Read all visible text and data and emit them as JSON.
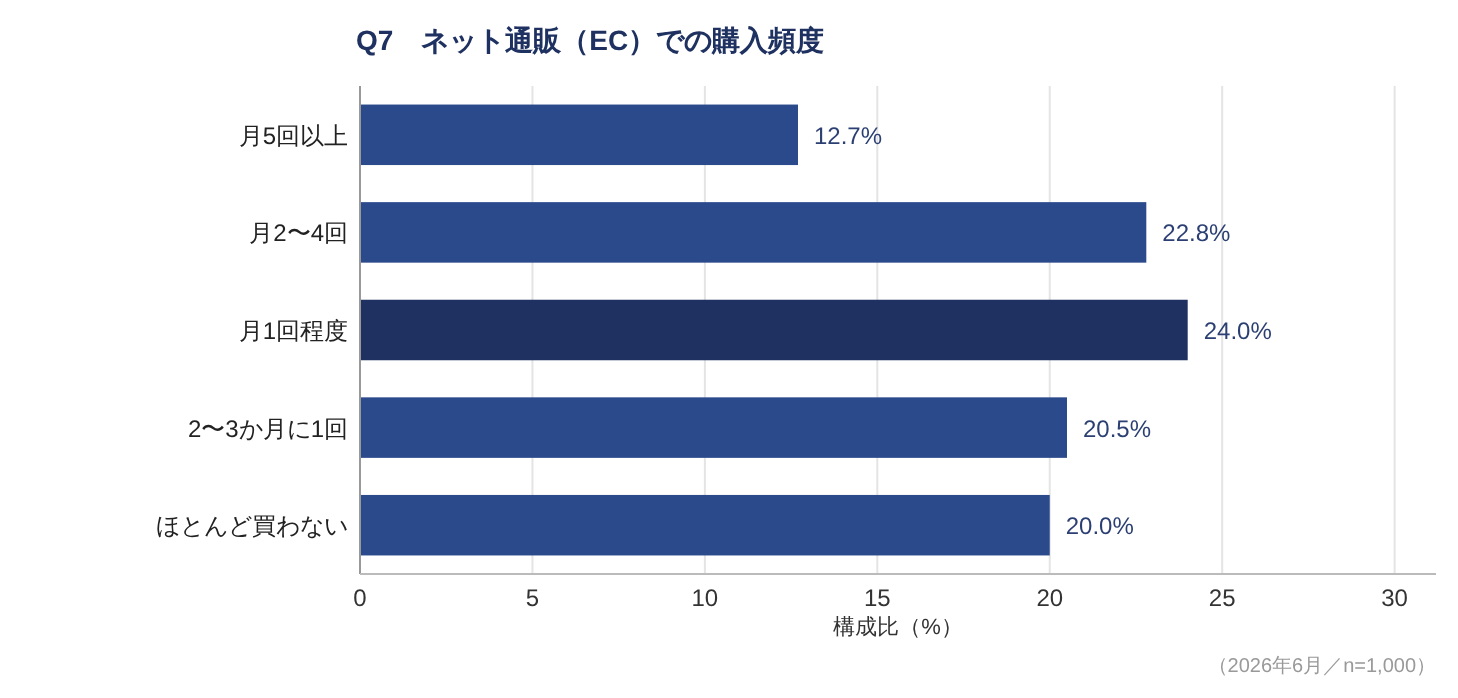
{
  "chart_data": {
    "type": "bar",
    "orientation": "horizontal",
    "title": "Q7　ネット通販（EC）での購入頻度",
    "categories": [
      "月5回以上",
      "月2〜4回",
      "月1回程度",
      "2〜3か月に1回",
      "ほとんど買わない"
    ],
    "values": [
      12.7,
      22.8,
      24.0,
      20.5,
      20.0
    ],
    "colors": [
      "#2b4a8b",
      "#2b4a8b",
      "#1e3160",
      "#2b4a8b",
      "#2b4a8b"
    ],
    "value_labels": [
      "12.7%",
      "22.8%",
      "24.0%",
      "20.5%",
      "20.0%"
    ],
    "xlim": [
      0,
      31.2
    ],
    "xticks": [
      0,
      5,
      10,
      15,
      20,
      25,
      30
    ],
    "xlabel": "構成比（%）",
    "grid": "x",
    "annotations": [
      "（2026年6月／n=1,000）"
    ]
  }
}
